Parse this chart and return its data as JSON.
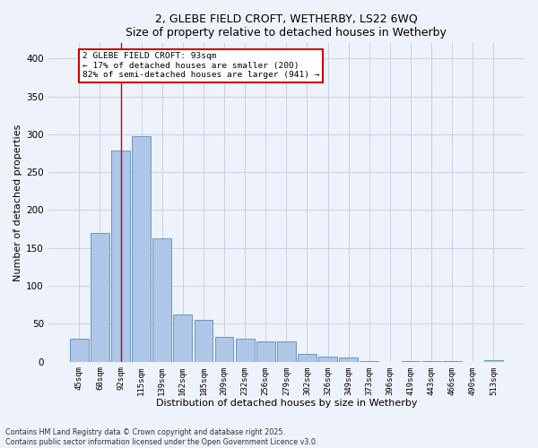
{
  "title_line1": "2, GLEBE FIELD CROFT, WETHERBY, LS22 6WQ",
  "title_line2": "Size of property relative to detached houses in Wetherby",
  "xlabel": "Distribution of detached houses by size in Wetherby",
  "ylabel": "Number of detached properties",
  "categories": [
    "45sqm",
    "68sqm",
    "92sqm",
    "115sqm",
    "139sqm",
    "162sqm",
    "185sqm",
    "209sqm",
    "232sqm",
    "256sqm",
    "279sqm",
    "302sqm",
    "326sqm",
    "349sqm",
    "373sqm",
    "396sqm",
    "419sqm",
    "443sqm",
    "466sqm",
    "490sqm",
    "513sqm"
  ],
  "values": [
    30,
    170,
    278,
    297,
    163,
    62,
    55,
    33,
    30,
    27,
    27,
    10,
    7,
    5,
    1,
    0,
    1,
    1,
    1,
    0,
    2
  ],
  "bar_color": "#aec6e8",
  "bar_edge_color": "#5b8db8",
  "vline_x": 2,
  "vline_color": "#cc0000",
  "annotation_text": "2 GLEBE FIELD CROFT: 93sqm\n← 17% of detached houses are smaller (200)\n82% of semi-detached houses are larger (941) →",
  "annotation_box_color": "#cc0000",
  "background_color": "#eef2fa",
  "grid_color": "#c8d0e8",
  "ylim": [
    0,
    420
  ],
  "yticks": [
    0,
    50,
    100,
    150,
    200,
    250,
    300,
    350,
    400
  ],
  "footnote": "Contains HM Land Registry data © Crown copyright and database right 2025.\nContains public sector information licensed under the Open Government Licence v3.0."
}
